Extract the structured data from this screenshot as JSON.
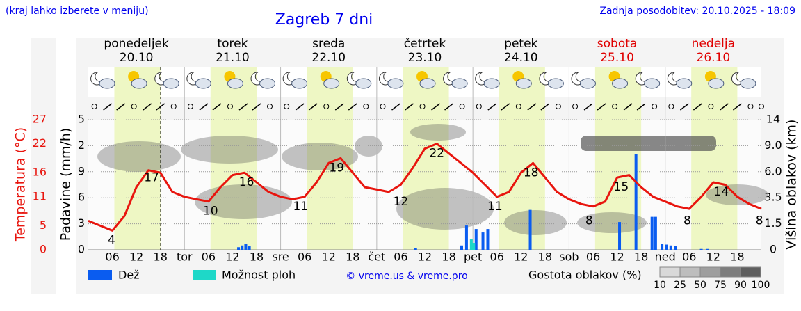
{
  "header": {
    "hint": "(kraj lahko izberete v meniju)",
    "title": "Zagreb 7 dni",
    "updated": "Zadnja posodobitev: 20.10.2025 - 18:09"
  },
  "chart_data": {
    "type": "meteogram",
    "days": [
      {
        "name": "ponedeljek",
        "date": "20.10",
        "color": "#000000"
      },
      {
        "name": "torek",
        "date": "21.10",
        "color": "#000000"
      },
      {
        "name": "sreda",
        "date": "22.10",
        "color": "#000000"
      },
      {
        "name": "četrtek",
        "date": "23.10",
        "color": "#000000"
      },
      {
        "name": "petek",
        "date": "24.10",
        "color": "#000000"
      },
      {
        "name": "sobota",
        "date": "25.10",
        "color": "#e00000"
      },
      {
        "name": "nedelja",
        "date": "26.10",
        "color": "#e00000"
      }
    ],
    "day_abbr": [
      null,
      "tor",
      "sre",
      "čet",
      "pet",
      "sob",
      "ned"
    ],
    "hour_labels": [
      "06",
      "12",
      "18"
    ],
    "xlim": [
      0,
      168
    ],
    "temp_axis_label": "Temperatura (°C)",
    "temp_ylim": [
      0,
      27
    ],
    "temp_yticks": [
      0,
      5,
      11,
      16,
      22,
      27
    ],
    "precip_axis_label": "Padavine (mm/h)",
    "precip_ylim": [
      0,
      15
    ],
    "precip_tick_labels": [
      "0",
      "3",
      "6",
      "9",
      "2",
      "5"
    ],
    "cloud_axis_label": "Višina oblakov (km)",
    "cloud_yticks": [
      0,
      1.5,
      3.5,
      {
        "value": 6,
        "label": "6.0"
      },
      {
        "value": 9,
        "label": "9.0"
      },
      14
    ],
    "temperature": {
      "name": "Temperatura",
      "color": "#e8150e",
      "x": [
        0,
        3,
        6,
        9,
        12,
        15,
        18,
        21,
        24,
        27,
        30,
        33,
        36,
        39,
        42,
        45,
        48,
        51,
        54,
        57,
        60,
        63,
        66,
        69,
        72,
        75,
        78,
        81,
        84,
        87,
        90,
        93,
        96,
        99,
        102,
        105,
        108,
        111,
        114,
        117,
        120,
        123,
        126,
        129,
        132,
        135,
        138,
        141,
        144,
        147,
        150,
        153,
        156,
        159,
        162,
        165,
        168
      ],
      "values": [
        6,
        5,
        4,
        7,
        13,
        16.5,
        16,
        12,
        11,
        10.5,
        10,
        13,
        15.5,
        16,
        14,
        12,
        11,
        10.5,
        11,
        14,
        18,
        19,
        16,
        13,
        12.5,
        12,
        13.5,
        17,
        21,
        22,
        20,
        18,
        16,
        13.5,
        11,
        12,
        16,
        18,
        15,
        12,
        10.5,
        9.5,
        9,
        10,
        15,
        15.5,
        13,
        11,
        10,
        9,
        8.5,
        11,
        14,
        13.5,
        11,
        9.5,
        8.5
      ]
    },
    "temp_labels": {
      "x": [
        5.8,
        15.8,
        30.5,
        39.5,
        53,
        62,
        78,
        87,
        101.5,
        110.5,
        125,
        133,
        149.5,
        158,
        167.5
      ],
      "values": [
        4,
        17,
        10,
        16,
        11,
        19,
        12,
        22,
        11,
        18,
        8,
        15,
        8,
        14,
        8
      ]
    },
    "rain": {
      "name": "Dež",
      "color": "#0a5cf0",
      "x": [
        37.5,
        38.4,
        39.3,
        40.2,
        81.7,
        93.2,
        94.4,
        96.8,
        98.5,
        99.7,
        110.3,
        132.6,
        136.7,
        140.7,
        141.6,
        143.2,
        144.3,
        145.4,
        146.5,
        153,
        154.5
      ],
      "values": [
        0.3,
        0.5,
        0.7,
        0.4,
        0.2,
        0.5,
        2.8,
        2.4,
        2.0,
        2.4,
        4.6,
        3.2,
        11,
        3.8,
        3.8,
        0.7,
        0.6,
        0.5,
        0.4,
        0.1,
        0.1
      ]
    },
    "showers": {
      "name": "Možnost ploh",
      "color": "#1ed8c8",
      "x": [
        95.6,
        96.2
      ],
      "values": [
        1.2,
        0.8
      ]
    },
    "cloud_density_label": "Gostota oblakov (%)",
    "cloud_density_ticks": [
      10,
      25,
      50,
      75,
      90,
      100
    ],
    "credit": "© vreme.us & vreme.pro"
  }
}
